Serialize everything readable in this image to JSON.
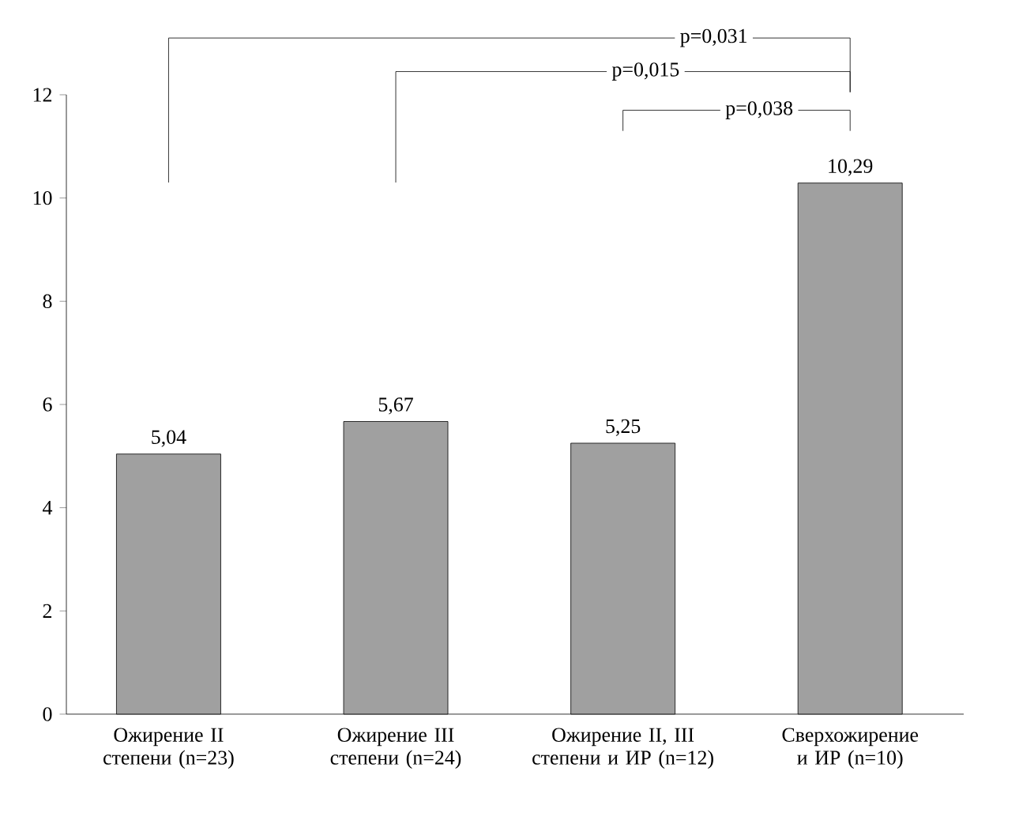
{
  "chart_data": {
    "type": "bar",
    "categories": [
      "Ожирение II степени (n=23)",
      "Ожирение III степени (n=24)",
      "Ожирение II, III степени и ИР (n=12)",
      "Сверхожирение и ИР (n=10)"
    ],
    "values": [
      5.04,
      5.67,
      5.25,
      10.29
    ],
    "value_labels": [
      "5,04",
      "5,67",
      "5,25",
      "10,29"
    ],
    "color": "#a0a0a0",
    "ylim": [
      0,
      12
    ],
    "yticks": [
      0,
      2,
      4,
      6,
      8,
      10,
      12
    ],
    "grid": false,
    "annotations": [
      "p=0,031",
      "p=0,015",
      "p=0,038"
    ]
  }
}
